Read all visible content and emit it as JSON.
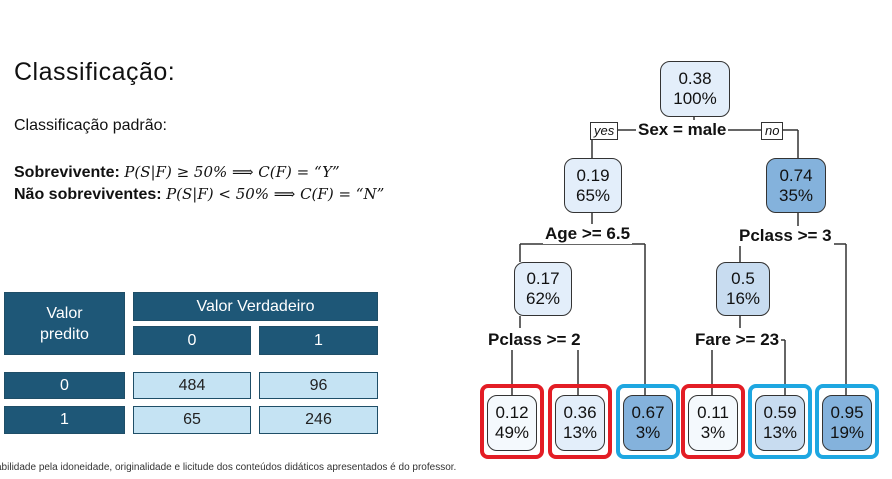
{
  "slide": {
    "title": "Classificação:",
    "subtitle": "Classificação padrão:",
    "rules": [
      {
        "label": "Sobrevivente:",
        "formula": "P(S|F) ≥ 50% ⟹ C(F) = “Y”"
      },
      {
        "label": "Não sobreviventes:",
        "formula": "P(S|F) < 50% ⟹ C(F) = “N”"
      }
    ],
    "footer": "abilidade pela idoneidade, originalidade e licitude dos conteúdos didáticos apresentados é do professor."
  },
  "confusion_matrix": {
    "predicted_header": "Valor predito",
    "true_header": "Valor Verdadeiro",
    "col_labels": [
      "0",
      "1"
    ],
    "rows": [
      {
        "label": "0",
        "values": [
          "484",
          "96"
        ]
      },
      {
        "label": "1",
        "values": [
          "65",
          "246"
        ]
      }
    ]
  },
  "tree": {
    "yes_label": "yes",
    "no_label": "no",
    "colors": {
      "lightest": "#f4f9fd",
      "light": "#e3eefa",
      "medium": "#c8dcf0",
      "dark": "#84b2dc",
      "highlight_red": "#e31d25",
      "highlight_blue": "#1ea7e1"
    },
    "nodes": {
      "root": {
        "p": "0.38",
        "pct": "100%"
      },
      "n_left": {
        "p": "0.19",
        "pct": "65%"
      },
      "n_right": {
        "p": "0.74",
        "pct": "35%"
      },
      "n_ll": {
        "p": "0.17",
        "pct": "62%"
      },
      "n_rl": {
        "p": "0.5",
        "pct": "16%"
      },
      "leaf1": {
        "p": "0.12",
        "pct": "49%"
      },
      "leaf2": {
        "p": "0.36",
        "pct": "13%"
      },
      "leaf3": {
        "p": "0.67",
        "pct": "3%"
      },
      "leaf4": {
        "p": "0.11",
        "pct": "3%"
      },
      "leaf5": {
        "p": "0.59",
        "pct": "13%"
      },
      "leaf6": {
        "p": "0.95",
        "pct": "19%"
      }
    },
    "splits": {
      "root": "Sex = male",
      "left": "Age >= 6.5",
      "right": "Pclass >= 3",
      "ll": "Pclass >= 2",
      "rl": "Fare >= 23"
    }
  }
}
